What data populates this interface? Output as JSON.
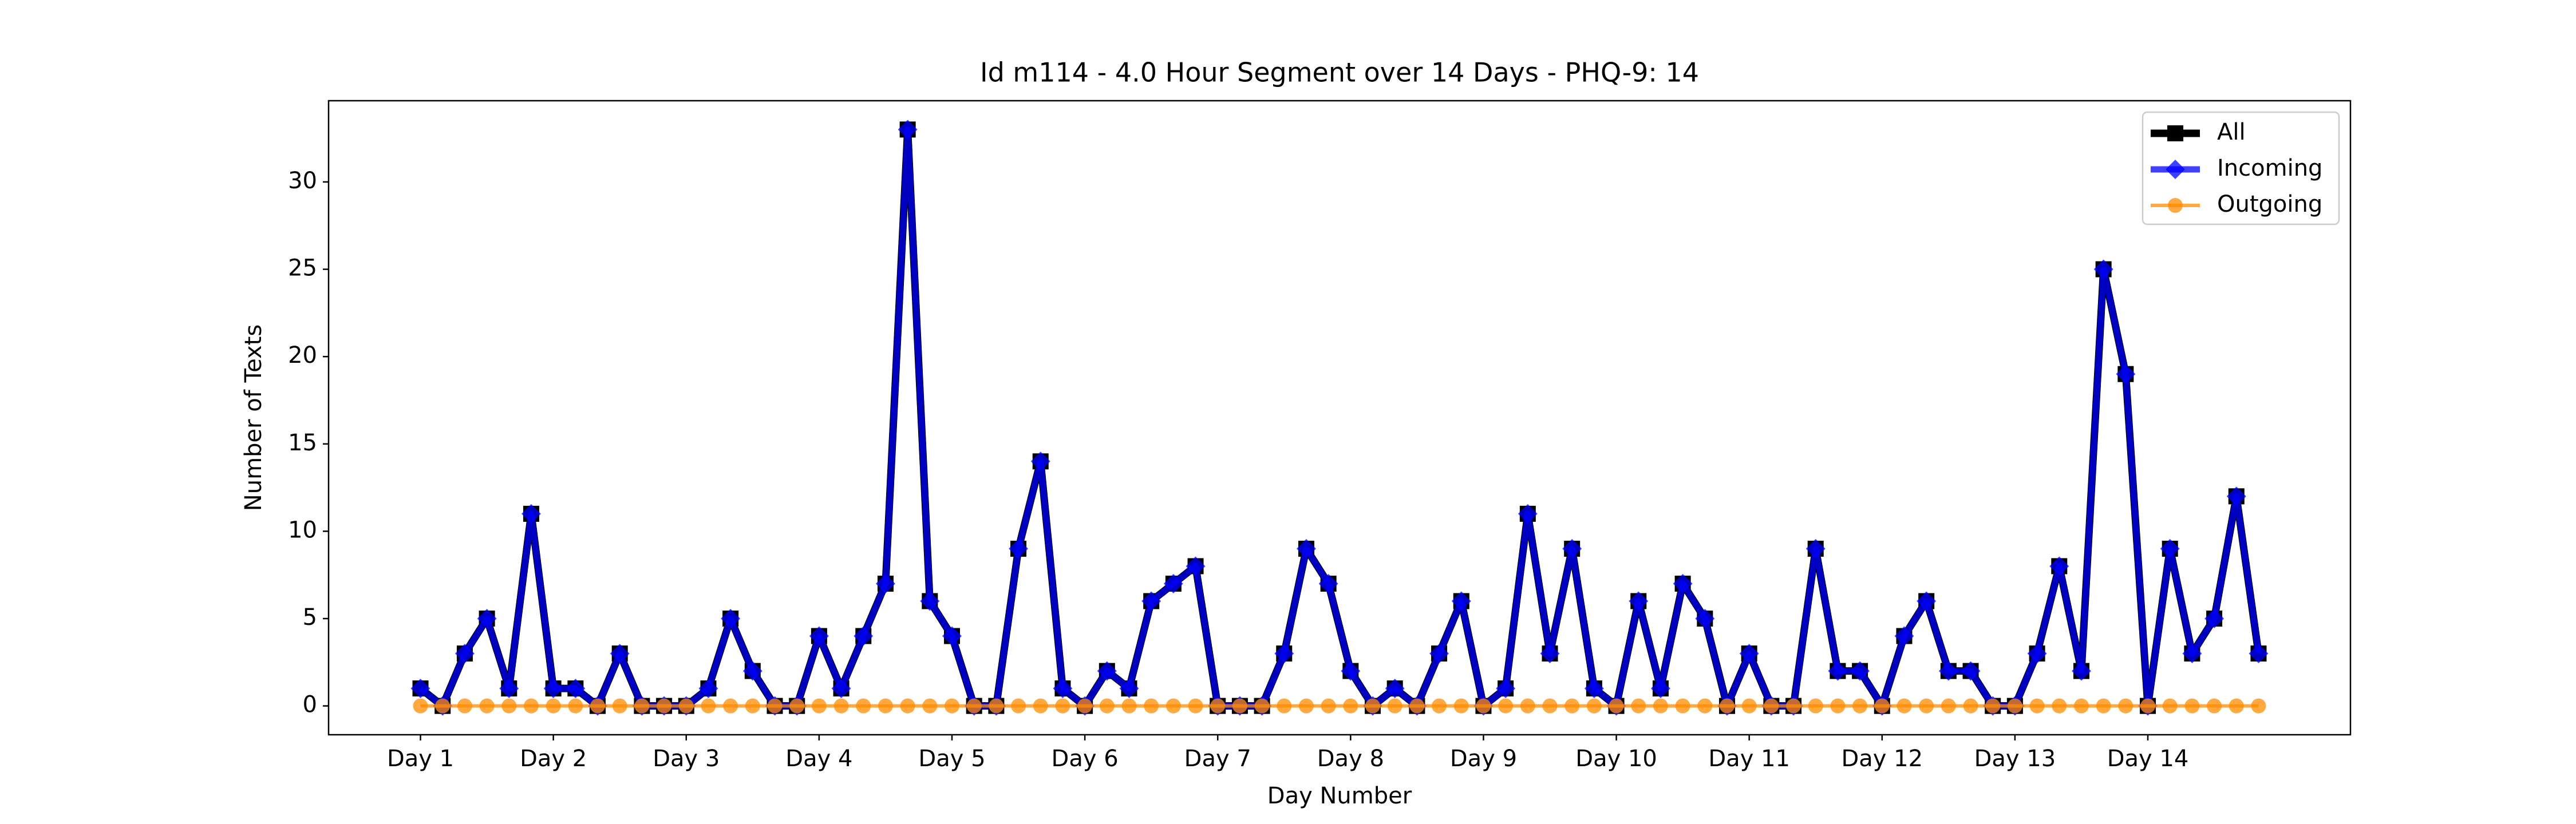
{
  "chart_data": {
    "type": "line",
    "title": "Id m114 - 4.0 Hour Segment over 14 Days - PHQ-9: 14",
    "x_label": "Day Number",
    "y_label": "Number of Texts",
    "x": [
      0,
      1,
      2,
      3,
      4,
      5,
      6,
      7,
      8,
      9,
      10,
      11,
      12,
      13,
      14,
      15,
      16,
      17,
      18,
      19,
      20,
      21,
      22,
      23,
      24,
      25,
      26,
      27,
      28,
      29,
      30,
      31,
      32,
      33,
      34,
      35,
      36,
      37,
      38,
      39,
      40,
      41,
      42,
      43,
      44,
      45,
      46,
      47,
      48,
      49,
      50,
      51,
      52,
      53,
      54,
      55,
      56,
      57,
      58,
      59,
      60,
      61,
      62,
      63,
      64,
      65,
      66,
      67,
      68,
      69,
      70,
      71,
      72,
      73,
      74,
      75,
      76,
      77,
      78,
      79,
      80,
      81,
      82,
      83
    ],
    "xlim": [
      -4.15,
      87.15
    ],
    "xticks": [
      {
        "value": 0,
        "label": "Day 1"
      },
      {
        "value": 6,
        "label": "Day 2"
      },
      {
        "value": 12,
        "label": "Day 3"
      },
      {
        "value": 18,
        "label": "Day 4"
      },
      {
        "value": 24,
        "label": "Day 5"
      },
      {
        "value": 30,
        "label": "Day 6"
      },
      {
        "value": 36,
        "label": "Day 7"
      },
      {
        "value": 42,
        "label": "Day 8"
      },
      {
        "value": 48,
        "label": "Day 9"
      },
      {
        "value": 54,
        "label": "Day 10"
      },
      {
        "value": 60,
        "label": "Day 11"
      },
      {
        "value": 66,
        "label": "Day 12"
      },
      {
        "value": 72,
        "label": "Day 13"
      },
      {
        "value": 78,
        "label": "Day 14"
      }
    ],
    "ylim": [
      -1.65,
      34.65
    ],
    "yticks": [
      0,
      5,
      10,
      15,
      20,
      25,
      30
    ],
    "grid": false,
    "legend": "upper right",
    "series": [
      {
        "name": "All",
        "color": "#000000",
        "marker": "square",
        "values": [
          1,
          0,
          3,
          5,
          1,
          11,
          1,
          1,
          0,
          3,
          0,
          0,
          0,
          1,
          5,
          2,
          0,
          0,
          4,
          1,
          4,
          7,
          33,
          6,
          4,
          0,
          0,
          9,
          14,
          1,
          0,
          2,
          1,
          6,
          7,
          8,
          0,
          0,
          0,
          3,
          9,
          7,
          2,
          0,
          1,
          0,
          3,
          6,
          0,
          1,
          11,
          3,
          9,
          1,
          0,
          6,
          1,
          7,
          5,
          0,
          3,
          0,
          0,
          9,
          2,
          2,
          0,
          4,
          6,
          2,
          2,
          0,
          0,
          3,
          8,
          2,
          25,
          19,
          0,
          9,
          3,
          5,
          12,
          3
        ]
      },
      {
        "name": "Incoming",
        "color": "#0000ff",
        "marker": "diamond",
        "values": [
          1,
          0,
          3,
          5,
          1,
          11,
          1,
          1,
          0,
          3,
          0,
          0,
          0,
          1,
          5,
          2,
          0,
          0,
          4,
          1,
          4,
          7,
          33,
          6,
          4,
          0,
          0,
          9,
          14,
          1,
          0,
          2,
          1,
          6,
          7,
          8,
          0,
          0,
          0,
          3,
          9,
          7,
          2,
          0,
          1,
          0,
          3,
          6,
          0,
          1,
          11,
          3,
          9,
          1,
          0,
          6,
          1,
          7,
          5,
          0,
          3,
          0,
          0,
          9,
          2,
          2,
          0,
          4,
          6,
          2,
          2,
          0,
          0,
          3,
          8,
          2,
          25,
          19,
          0,
          9,
          3,
          5,
          12,
          3
        ]
      },
      {
        "name": "Outgoing",
        "color": "#ff8c00",
        "marker": "circle",
        "values": [
          0,
          0,
          0,
          0,
          0,
          0,
          0,
          0,
          0,
          0,
          0,
          0,
          0,
          0,
          0,
          0,
          0,
          0,
          0,
          0,
          0,
          0,
          0,
          0,
          0,
          0,
          0,
          0,
          0,
          0,
          0,
          0,
          0,
          0,
          0,
          0,
          0,
          0,
          0,
          0,
          0,
          0,
          0,
          0,
          0,
          0,
          0,
          0,
          0,
          0,
          0,
          0,
          0,
          0,
          0,
          0,
          0,
          0,
          0,
          0,
          0,
          0,
          0,
          0,
          0,
          0,
          0,
          0,
          0,
          0,
          0,
          0,
          0,
          0,
          0,
          0,
          0,
          0,
          0,
          0,
          0,
          0,
          0,
          0
        ]
      }
    ]
  }
}
